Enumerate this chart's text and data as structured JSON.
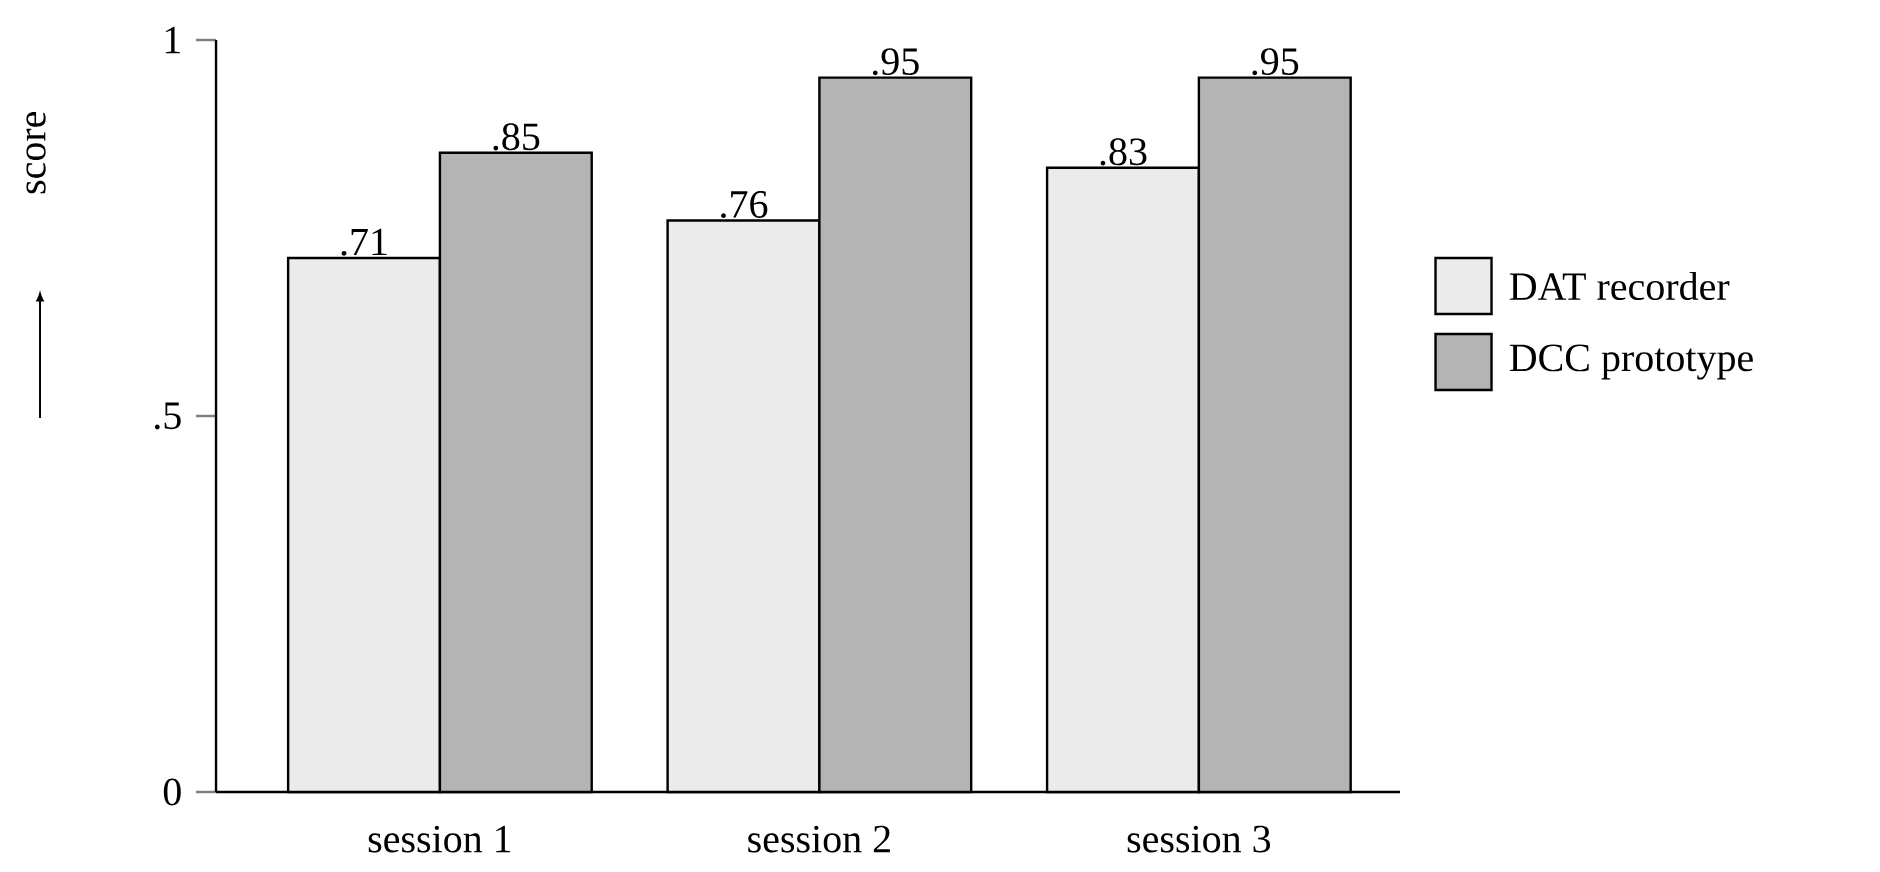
{
  "chart_data": {
    "type": "bar",
    "ylabel": "score",
    "categories": [
      "session 1",
      "session 2",
      "session 3"
    ],
    "series": [
      {
        "name": "DAT recorder",
        "color": "#ebebeb",
        "values": [
          0.71,
          0.76,
          0.83
        ],
        "value_labels": [
          ".71",
          ".76",
          ".83"
        ]
      },
      {
        "name": "DCC prototype",
        "color": "#b4b4b4",
        "values": [
          0.85,
          0.95,
          0.95
        ],
        "value_labels": [
          ".85",
          ".95",
          ".95"
        ]
      }
    ],
    "ylim": [
      0,
      1
    ],
    "yticks": [
      0,
      {
        "value": 0.5,
        "label": ".5"
      },
      1
    ],
    "grid": false,
    "legend": "right"
  }
}
